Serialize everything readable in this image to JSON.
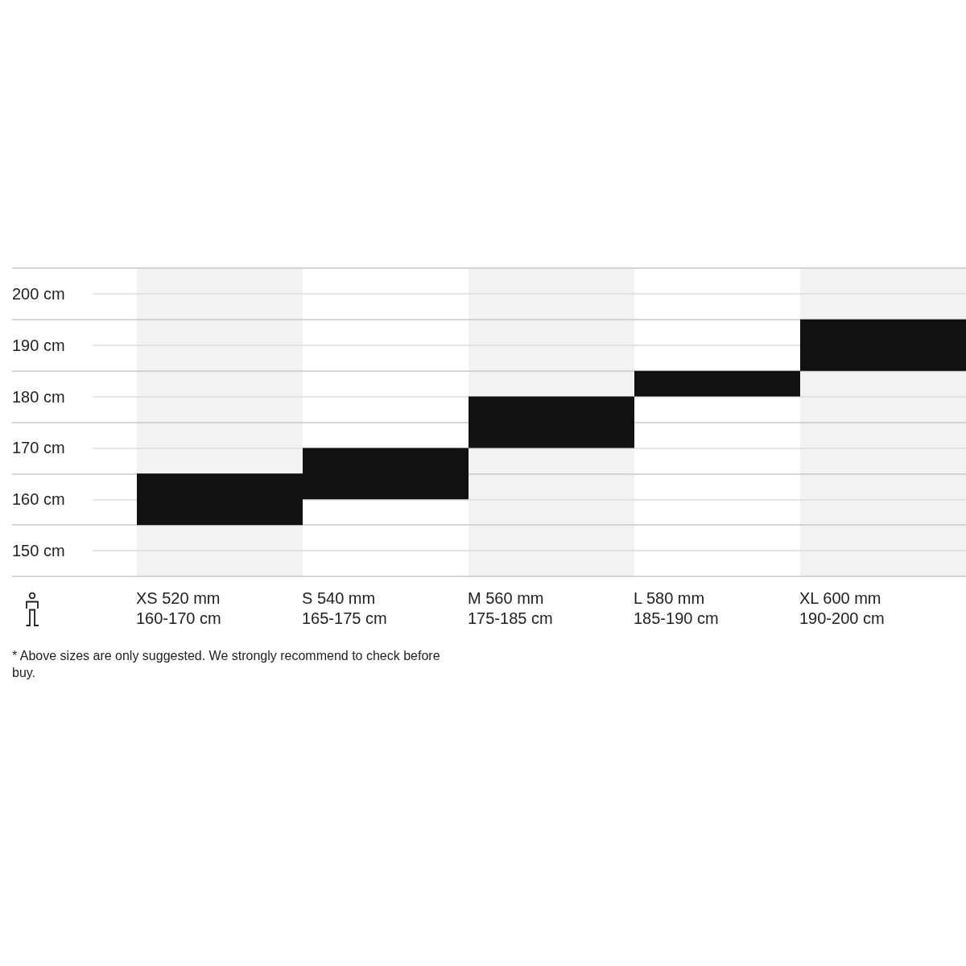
{
  "chart_data": {
    "type": "bar",
    "categories": [
      "XS 520 mm 160-170 cm",
      "S 540 mm 165-175 cm",
      "M 560 mm 175-185 cm",
      "L 580 mm 185-190 cm",
      "XL 600 mm 190-200 cm"
    ],
    "base": [
      155,
      160,
      170,
      180,
      185
    ],
    "values": [
      10,
      10,
      10,
      5,
      10
    ],
    "color": "#111111",
    "ylim": [
      145,
      205
    ],
    "yticks": [
      {
        "value": 145,
        "label": null
      },
      {
        "value": 150,
        "label": "150 cm"
      },
      {
        "value": 155,
        "label": null
      },
      {
        "value": 160,
        "label": "160 cm"
      },
      {
        "value": 165,
        "label": null
      },
      {
        "value": 170,
        "label": "170 cm"
      },
      {
        "value": 175,
        "label": null
      },
      {
        "value": 180,
        "label": "180 cm"
      },
      {
        "value": 185,
        "label": null
      },
      {
        "value": 190,
        "label": "190 cm"
      },
      {
        "value": 195,
        "label": null
      },
      {
        "value": 200,
        "label": "200 cm"
      },
      {
        "value": 205,
        "label": null
      }
    ],
    "grid": true,
    "annotations": [
      "* Above sizes are only suggested. We strongly recommend to check before buy."
    ]
  }
}
